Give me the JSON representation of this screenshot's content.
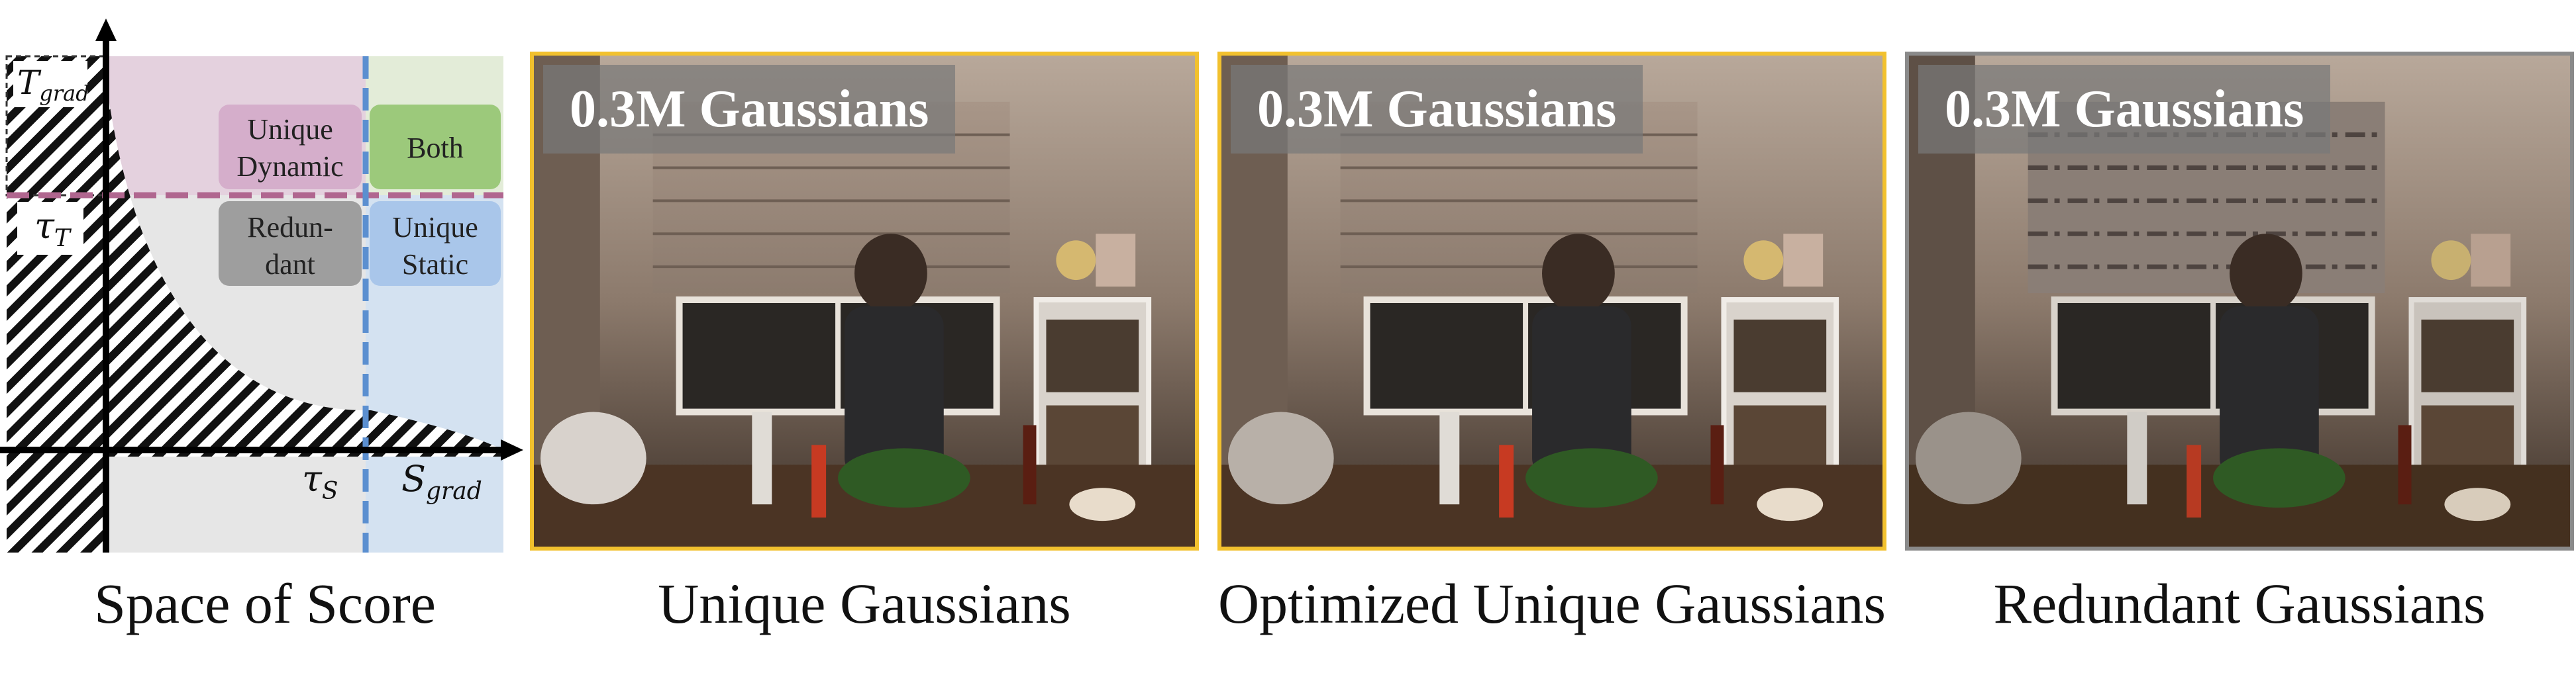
{
  "diagram": {
    "axis_labels": {
      "t_grad": "T",
      "t_grad_sub": "grad",
      "tau_t": "τ",
      "tau_t_sub": "T",
      "tau_s": "τ",
      "tau_s_sub": "S",
      "s_grad": "S",
      "s_grad_sub": "grad"
    },
    "regions": {
      "unique_dynamic": [
        "Unique",
        "Dynamic"
      ],
      "both": "Both",
      "redundant": [
        "Redun-",
        "dant"
      ],
      "unique_static": [
        "Unique",
        "Static"
      ]
    },
    "colors": {
      "dynamic_region": "#e4d1de",
      "both_region": "#e3ecd8",
      "static_region": "#d4e2f1",
      "redundant_region": "#e6e6e6",
      "unique_dynamic_box": "#d5aecb",
      "both_box": "#9cc97b",
      "redundant_box": "#9e9e9e",
      "unique_static_box": "#a9c6ea",
      "tau_t_line": "#b0668f",
      "tau_s_line": "#5b8fd0"
    }
  },
  "panels": [
    {
      "badge": "0.3M Gaussians",
      "caption": "Unique Gaussians",
      "frame_color": "#f2c12e"
    },
    {
      "badge": "0.3M Gaussians",
      "caption": "Optimized Unique Gaussians",
      "frame_color": "#f2c12e"
    },
    {
      "badge": "0.3M Gaussians",
      "caption": "Redundant Gaussians",
      "frame_color": "#8a8a8a"
    }
  ],
  "diagram_caption": "Space of Score"
}
